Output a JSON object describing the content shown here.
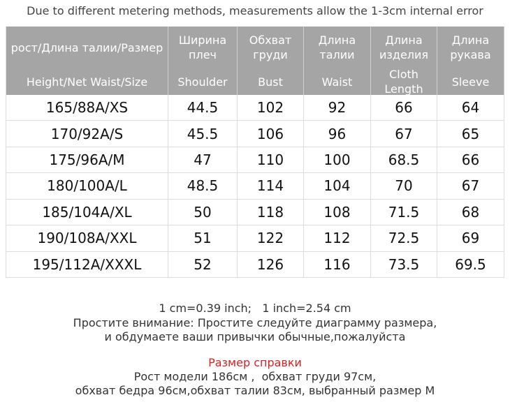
{
  "note": "Due to different metering methods, measurements allow the 1-3cm internal error",
  "table": {
    "header_ru": [
      "рост/Длина талии/Размер",
      "Ширина плеч",
      "Обхват груди",
      "Длина талии",
      "Длина изделия",
      "Длина рукава"
    ],
    "header_en": [
      "Height/Net  Waist/Size",
      "Shoulder",
      "Bust",
      "Waist",
      "Cloth Length",
      "Sleeve"
    ],
    "rows": [
      [
        "165/88A/XS",
        "44.5",
        "102",
        "92",
        "66",
        "64"
      ],
      [
        "170/92A/S",
        "45.5",
        "106",
        "96",
        "67",
        "65"
      ],
      [
        "175/96A/M",
        "47",
        "110",
        "100",
        "68.5",
        "66"
      ],
      [
        "180/100A/L",
        "48.5",
        "114",
        "104",
        "70",
        "67"
      ],
      [
        "185/104A/XL",
        "50",
        "118",
        "108",
        "71.5",
        "68"
      ],
      [
        "190/108A/XXL",
        "51",
        "122",
        "112",
        "72.5",
        "69"
      ],
      [
        "195/112A/XXXL",
        "52",
        "126",
        "116",
        "73.5",
        "69.5"
      ]
    ]
  },
  "footer": {
    "conversion": "1 cm=0.39 inch;   1 inch=2.54 cm",
    "notice_1": "Простите внимание: Простите следуйте диаграмму размера,",
    "notice_2": "и обдумаете ваши привычки обычные,пожалуйста",
    "reference_title": "Размер справки",
    "reference_1": "Рост модели 186см ,  обхват груди 97см,",
    "reference_2": "обхват бедра 96см,обхват талии 83см, выбранный размер M"
  }
}
